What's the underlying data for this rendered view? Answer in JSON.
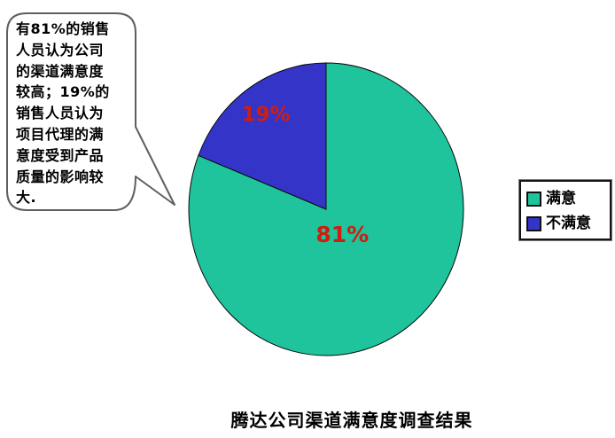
{
  "title": "腾达公司渠道满意度调查结果",
  "bubble": {
    "text": "有81%的销售\n人员认为公司\n的渠道满意度\n较高；19%的\n销售人员认为\n项目代理的满\n意度受到产品\n质量的影响较\n大."
  },
  "legend": {
    "position": "right",
    "items": [
      {
        "label": "满意",
        "color": "#1fc49c"
      },
      {
        "label": "不满意",
        "color": "#3434c9"
      }
    ]
  },
  "chart_data": {
    "type": "pie",
    "title": "腾达公司渠道满意度调查结果",
    "categories": [
      "满意",
      "不满意"
    ],
    "values": [
      81,
      19
    ],
    "unit": "%",
    "slice_labels": [
      "81%",
      "19%"
    ],
    "colors": [
      "#1fc49c",
      "#3434c9"
    ],
    "label_color": "#cf1d10",
    "outline_color": "#0a0a0a",
    "start_angle_deg": 90,
    "direction": "clockwise",
    "legend_position": "right",
    "annotation": "有81%的销售人员认为公司的渠道满意度较高；19%的销售人员认为项目代理的满意度受到产品质量的影响较大."
  }
}
